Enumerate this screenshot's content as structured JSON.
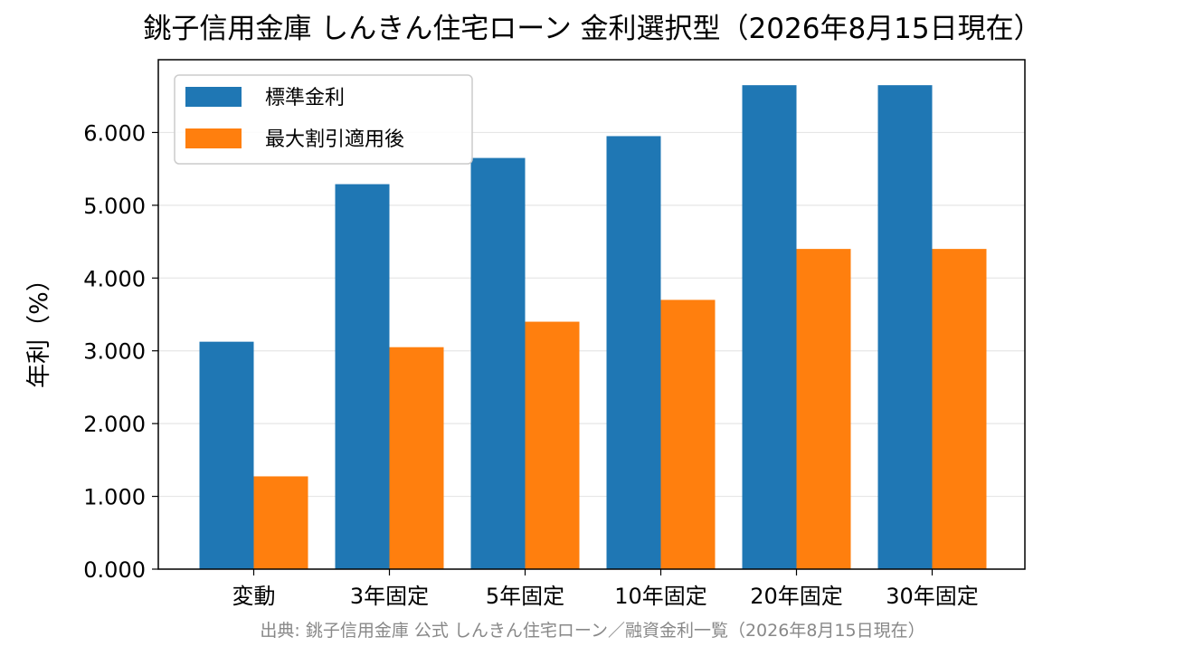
{
  "chart_data": {
    "type": "bar",
    "title": "銚子信用金庫 しんきん住宅ローン 金利選択型（2026年8月15日現在）",
    "xlabel": "",
    "ylabel": "年利（%）",
    "categories": [
      "変動",
      "3年固定",
      "5年固定",
      "10年固定",
      "20年固定",
      "30年固定"
    ],
    "series": [
      {
        "name": "標準金利",
        "color": "#1f77b4",
        "values": [
          3.125,
          5.29,
          5.65,
          5.95,
          6.65,
          6.65
        ]
      },
      {
        "name": "最大割引適用後",
        "color": "#ff7f0e",
        "values": [
          1.275,
          3.05,
          3.4,
          3.7,
          4.4,
          4.4
        ]
      }
    ],
    "ylim": [
      0,
      7.0
    ],
    "yticks": [
      0,
      1,
      2,
      3,
      4,
      5,
      6
    ],
    "ytick_labels": [
      "0.000",
      "1.000",
      "2.000",
      "3.000",
      "4.000",
      "5.000",
      "6.000"
    ],
    "grid": "horizontal",
    "legend_position": "top-left",
    "source": "出典: 銚子信用金庫 公式 しんきん住宅ローン／融資金利一覧（2026年8月15日現在）"
  }
}
